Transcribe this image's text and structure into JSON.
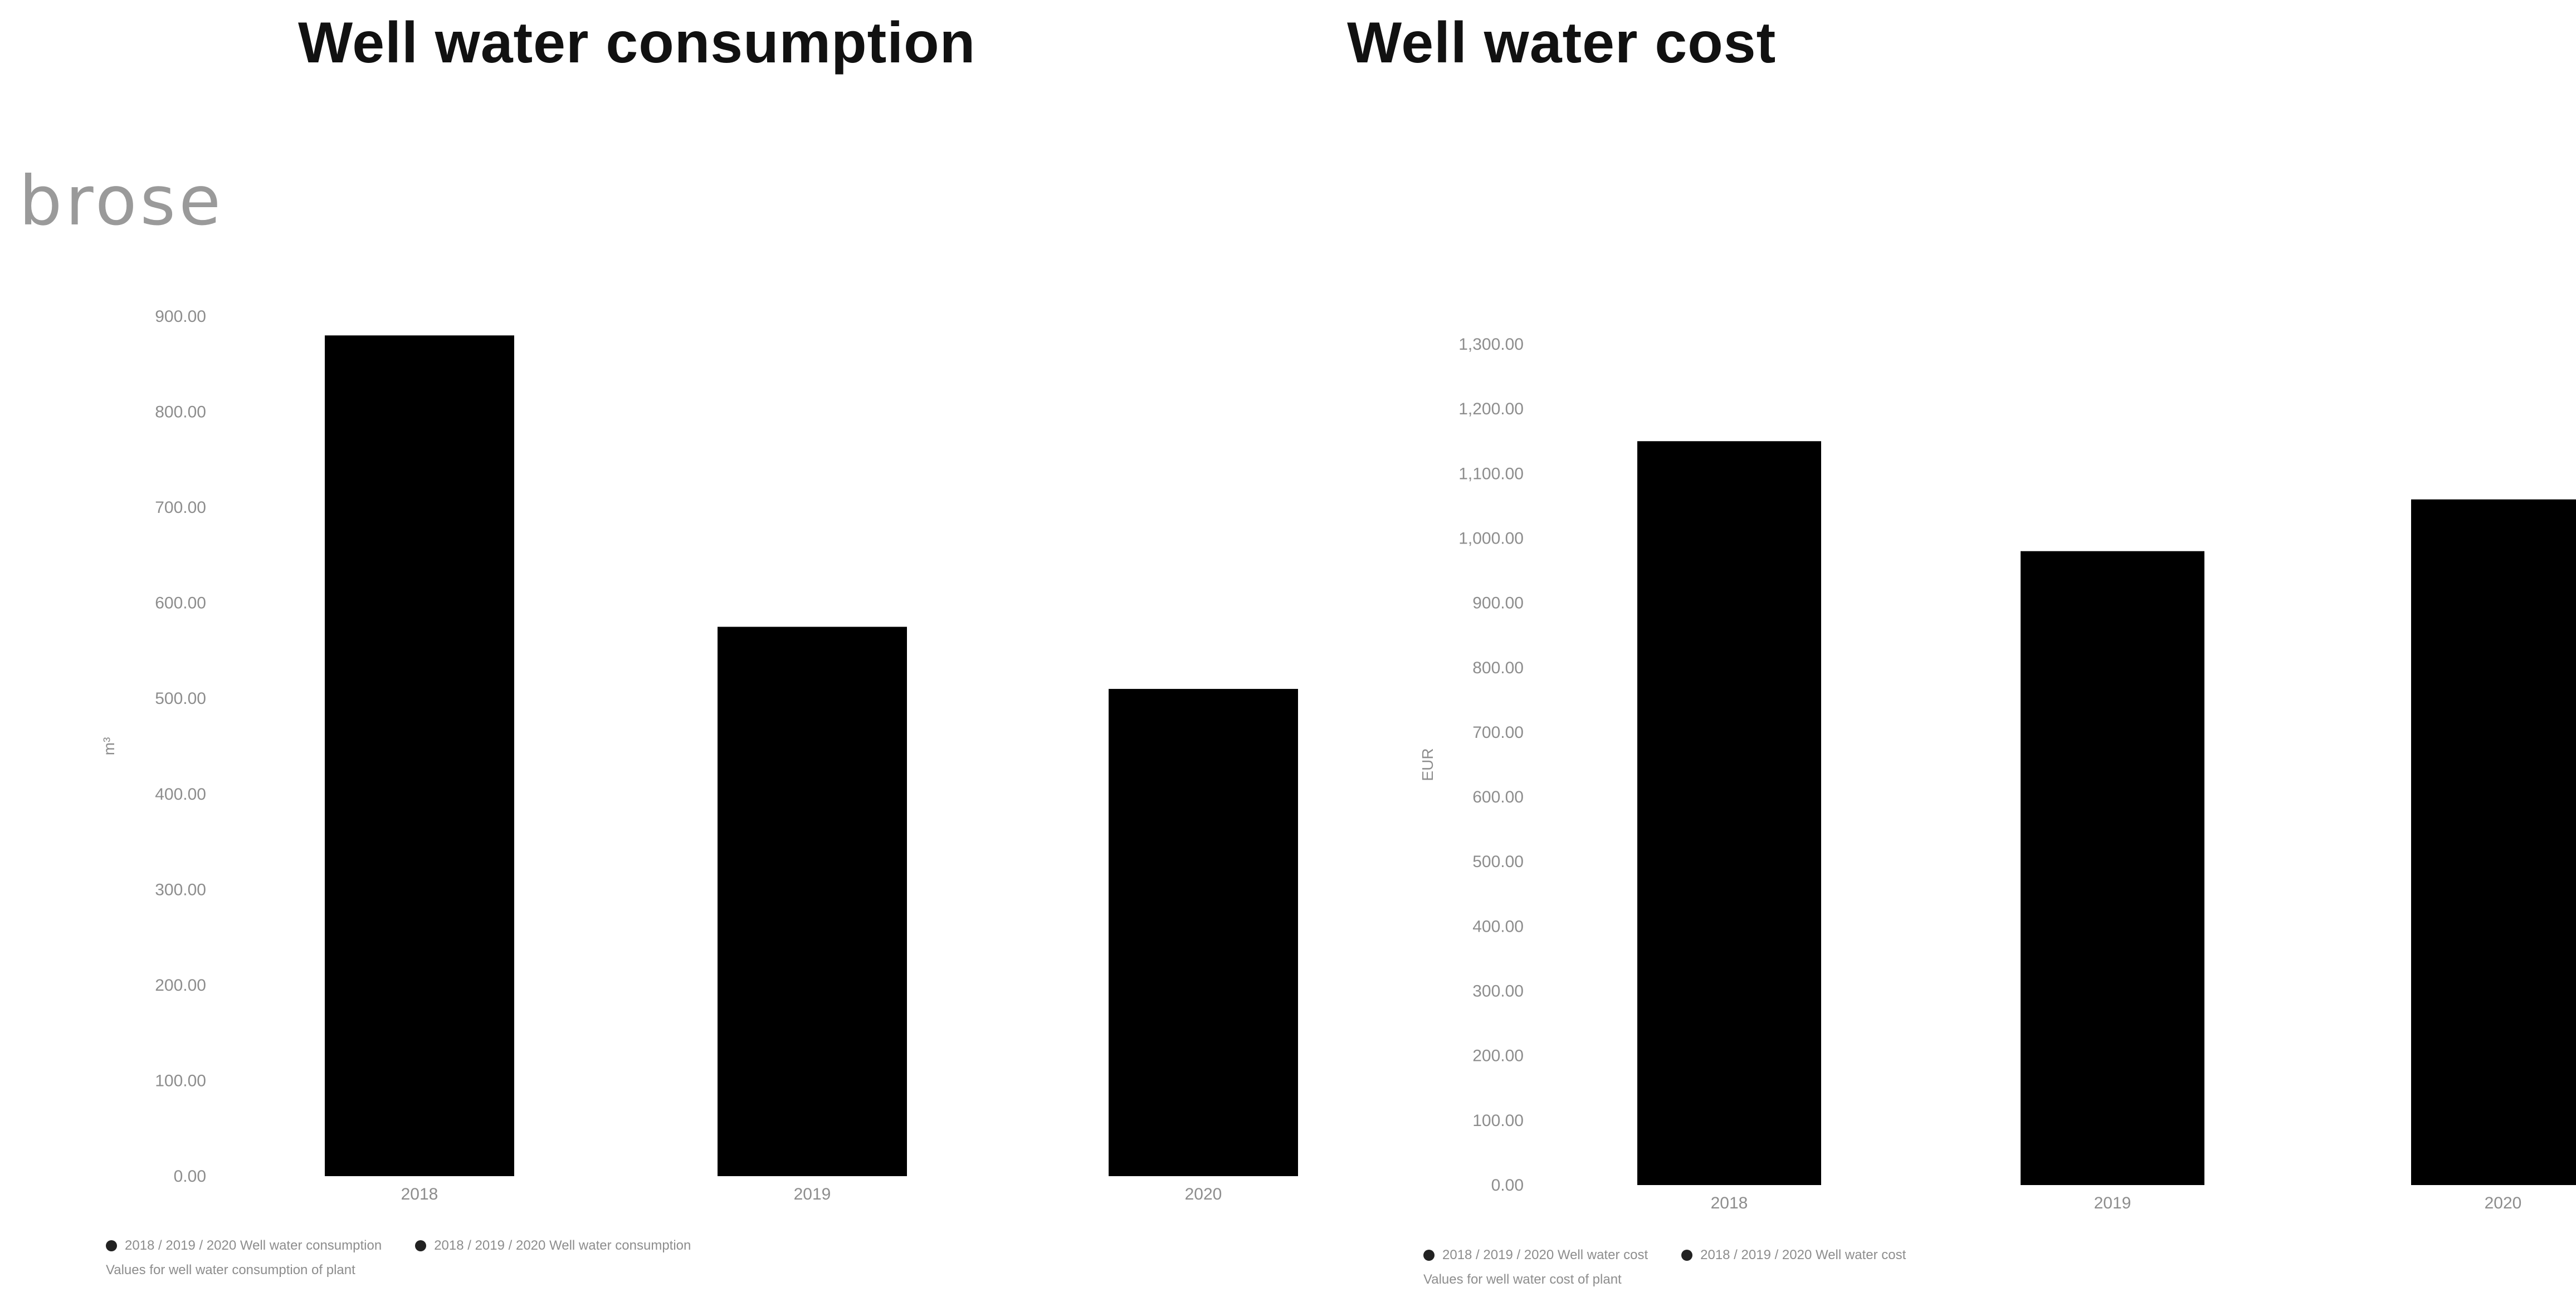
{
  "titles": {
    "left": "Well water consumption",
    "right": "Well water cost"
  },
  "logo_text": "brose",
  "colors": {
    "bar": "#000000",
    "tick_text": "#8d8d8d",
    "title": "#111111"
  },
  "chart_data": [
    {
      "type": "bar",
      "title": "Well water consumption",
      "categories": [
        "2018",
        "2019",
        "2020"
      ],
      "values": [
        880,
        575,
        510
      ],
      "ylim": [
        0,
        900
      ],
      "yticks": [
        0,
        100,
        200,
        300,
        400,
        500,
        600,
        700,
        800,
        900
      ],
      "ytick_labels": [
        "0.00",
        "100.00",
        "200.00",
        "300.00",
        "400.00",
        "500.00",
        "600.00",
        "700.00",
        "800.00",
        "900.00"
      ],
      "ylabel": "m³",
      "legend": [
        "2018 / 2019 / 2020 Well water consumption",
        "2018 / 2019 / 2020 Well water consumption"
      ],
      "legend_cont": "Values for well water consumption of plant",
      "legend_position": "bottom-left"
    },
    {
      "type": "bar",
      "title": "Well water cost",
      "categories": [
        "2018",
        "2019",
        "2020"
      ],
      "values": [
        1150,
        980,
        1060
      ],
      "ylim": [
        0,
        1300
      ],
      "yticks": [
        0,
        100,
        200,
        300,
        400,
        500,
        600,
        700,
        800,
        900,
        1000,
        1100,
        1200,
        1300
      ],
      "ytick_labels": [
        "0.00",
        "100.00",
        "200.00",
        "300.00",
        "400.00",
        "500.00",
        "600.00",
        "700.00",
        "800.00",
        "900.00",
        "1,000.00",
        "1,100.00",
        "1,200.00",
        "1,300.00"
      ],
      "ylabel": "EUR",
      "legend": [
        "2018 / 2019 / 2020 Well water cost",
        "2018 / 2019 / 2020 Well water cost"
      ],
      "legend_cont": "Values for well water cost of plant",
      "legend_position": "bottom-left"
    }
  ]
}
